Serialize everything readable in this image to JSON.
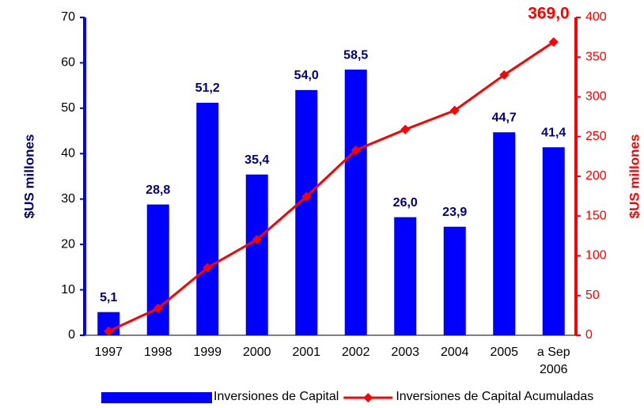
{
  "chart_data": {
    "type": "bar_line",
    "categories": [
      "1997",
      "1998",
      "1999",
      "2000",
      "2001",
      "2002",
      "2003",
      "2004",
      "2005",
      "a Sep 2006"
    ],
    "ylabel": "$US millones",
    "y2label": "$US millones",
    "ylim": [
      0,
      70
    ],
    "yticks": [
      0,
      10,
      20,
      30,
      40,
      50,
      60,
      70
    ],
    "y2lim": [
      0,
      400
    ],
    "y2ticks": [
      0,
      50,
      100,
      150,
      200,
      250,
      300,
      350,
      400
    ],
    "series": [
      {
        "name": "Inversiones de Capital",
        "color": "#0000ff",
        "type": "bar",
        "values": [
          5.1,
          28.8,
          51.2,
          35.4,
          54.0,
          58.5,
          26.0,
          23.9,
          44.7,
          41.4
        ],
        "value_labels": [
          "5,1",
          "28,8",
          "51,2",
          "35,4",
          "54,0",
          "58,5",
          "26,0",
          "23,9",
          "44,7",
          "41,4"
        ]
      },
      {
        "name": "Inversiones de Capital Acumuladas",
        "color": "#ff0000",
        "type": "line",
        "axis": "y2",
        "values": [
          5.1,
          33.9,
          85.1,
          120.5,
          174.5,
          233.0,
          259.0,
          282.9,
          327.6,
          369.0
        ],
        "value_labels": [
          null,
          null,
          null,
          null,
          null,
          null,
          null,
          null,
          null,
          "369,0"
        ]
      }
    ]
  }
}
